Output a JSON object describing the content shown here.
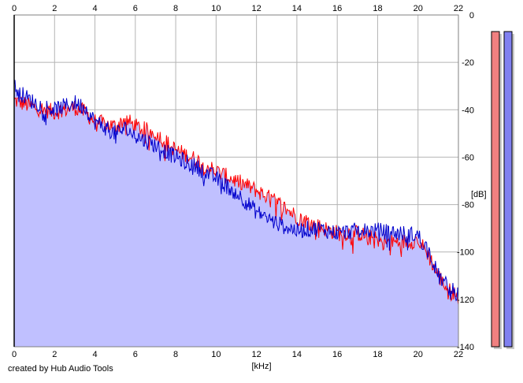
{
  "credit": "created by Hub Audio Tools",
  "chart_data": {
    "type": "area",
    "xlabel": "[kHz]",
    "ylabel": "[dB]",
    "xlim": [
      0,
      22
    ],
    "ylim": [
      -140,
      0
    ],
    "xticks": [
      0,
      2,
      4,
      6,
      8,
      10,
      12,
      14,
      16,
      18,
      20,
      22
    ],
    "yticks": [
      0,
      -20,
      -40,
      -60,
      -80,
      -100,
      -120,
      -140
    ],
    "x_ticks_top_and_bottom": true,
    "y_axis_side": "right",
    "grid": true,
    "fill_color": "#c0c0ff",
    "series": [
      {
        "color": "#ff0000",
        "noise_db": 3.5,
        "x": [
          0,
          0.3,
          1,
          2,
          3,
          3.5,
          4,
          5,
          5.5,
          6,
          7,
          8,
          9,
          10,
          11,
          12,
          13,
          14,
          15,
          16,
          17,
          18,
          19,
          20,
          20.5,
          21,
          21.5,
          22
        ],
        "values": [
          -36,
          -37,
          -39,
          -41,
          -39,
          -41,
          -45,
          -47,
          -44,
          -47,
          -50,
          -57,
          -61,
          -66,
          -70,
          -74,
          -79,
          -85,
          -89,
          -92,
          -92,
          -95,
          -96,
          -95,
          -101,
          -110,
          -116,
          -119
        ]
      },
      {
        "color": "#0000cc",
        "noise_db": 3.5,
        "x": [
          0,
          0.3,
          1,
          2,
          3,
          3.5,
          4,
          5,
          5.5,
          6,
          7,
          8,
          9,
          10,
          11,
          12,
          13,
          14,
          15,
          16,
          17,
          18,
          19,
          20,
          20.5,
          21,
          21.5,
          22
        ],
        "values": [
          -30,
          -33,
          -37,
          -40,
          -37,
          -39,
          -45,
          -50,
          -48,
          -51,
          -55,
          -60,
          -64,
          -69,
          -75,
          -83,
          -88,
          -91,
          -90,
          -92,
          -91,
          -91,
          -92,
          -93,
          -99,
          -110,
          -115,
          -118
        ]
      }
    ],
    "level_meters": [
      {
        "color": "#f08080",
        "level_db": -7
      },
      {
        "color": "#8080f0",
        "level_db": -7
      }
    ]
  }
}
